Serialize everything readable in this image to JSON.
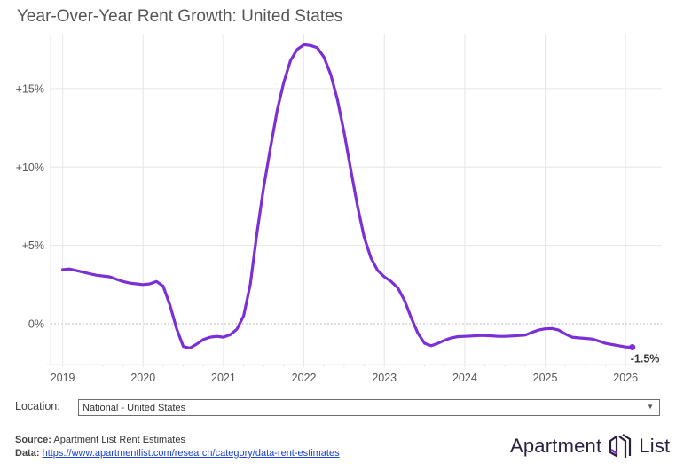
{
  "title": "Year-Over-Year Rent Growth: United States",
  "location": {
    "label": "Location:",
    "selected": "National - United States"
  },
  "footer": {
    "source_label": "Source:",
    "source_value": "Apartment List Rent Estimates",
    "data_label": "Data:",
    "data_link": "https://www.apartmentlist.com/research/category/data-rent-estimates"
  },
  "logo": {
    "left_text": "Apartment",
    "right_text": "List",
    "icon": "apartment-list-logo-icon"
  },
  "colors": {
    "line": "#7b2fd6",
    "grid": "#e6e6e6",
    "zero_line": "#bbbbbb",
    "text": "#555555",
    "link": "#1a3fd6"
  },
  "chart_data": {
    "type": "line",
    "title": "Year-Over-Year Rent Growth: United States",
    "xlabel": "",
    "ylabel": "",
    "x_start": "2019-01",
    "x_frequency": "monthly",
    "xlim": [
      2018.85,
      2026.45
    ],
    "ylim": [
      -2.6,
      18.5
    ],
    "x_ticks": [
      2019,
      2020,
      2021,
      2022,
      2023,
      2024,
      2025,
      2026
    ],
    "x_tick_labels": [
      "2019",
      "2020",
      "2021",
      "2022",
      "2023",
      "2024",
      "2025",
      "2026"
    ],
    "y_ticks": [
      0,
      5,
      10,
      15
    ],
    "y_tick_labels": [
      "0%",
      "+5%",
      "+10%",
      "+15%"
    ],
    "grid": true,
    "zero_line_style": "dotted",
    "end_label": "-1.5%",
    "series": [
      {
        "name": "National - United States",
        "values": [
          3.45,
          3.5,
          3.4,
          3.3,
          3.2,
          3.1,
          3.05,
          3.0,
          2.85,
          2.7,
          2.6,
          2.55,
          2.5,
          2.55,
          2.7,
          2.4,
          1.2,
          -0.3,
          -1.45,
          -1.55,
          -1.3,
          -1.0,
          -0.85,
          -0.8,
          -0.85,
          -0.7,
          -0.35,
          0.5,
          2.5,
          5.8,
          8.7,
          11.2,
          13.6,
          15.4,
          16.8,
          17.5,
          17.8,
          17.75,
          17.6,
          17.0,
          15.9,
          14.3,
          12.2,
          9.8,
          7.5,
          5.5,
          4.2,
          3.4,
          3.0,
          2.7,
          2.3,
          1.5,
          0.4,
          -0.6,
          -1.25,
          -1.4,
          -1.25,
          -1.05,
          -0.9,
          -0.82,
          -0.8,
          -0.78,
          -0.75,
          -0.75,
          -0.77,
          -0.8,
          -0.8,
          -0.78,
          -0.75,
          -0.72,
          -0.55,
          -0.4,
          -0.32,
          -0.3,
          -0.4,
          -0.65,
          -0.85,
          -0.9,
          -0.93,
          -0.97,
          -1.1,
          -1.25,
          -1.33,
          -1.4,
          -1.48,
          -1.5
        ]
      }
    ]
  }
}
